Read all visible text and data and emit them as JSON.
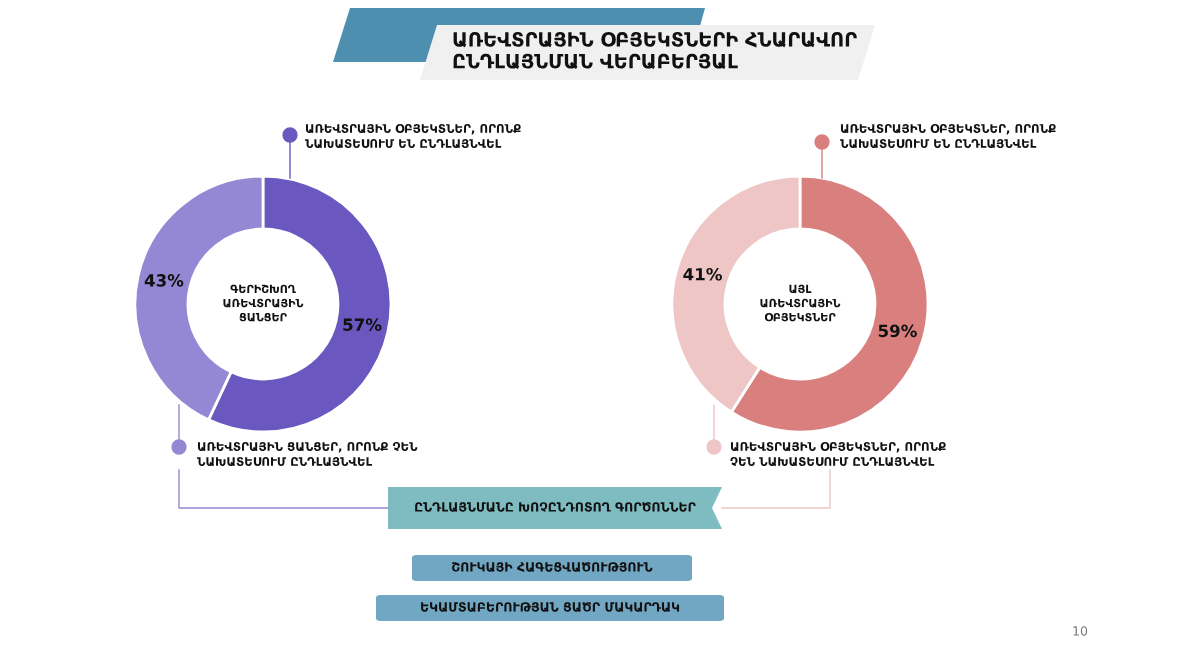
{
  "chart_data": [
    {
      "type": "donut",
      "title": "ԱՌԵՎՏՐԱՅԻՆ ՕԲՅԵԿՏՆԵՐԻ ՀՆԱՐԱՎՈՐ\nԸՆԴԼԱՅՆՄԱՆ ՎԵՐԱԲԵՐՅԱԼ",
      "categories": [
        "ԱՌԵՎՏՐԱՅԻՆ ՕԲՅԵԿՏՆԵՐ, ՈՐՈՆՔ\nՆԱԽԱՏԵՍՈՒՄ ԵՆ ԸՆԴԼԱՅՆՎԵԼ",
        "ԱՌԵՎՏՐԱՅԻՆ ՑԱՆՑԵՐ, ՈՐՈՆՔ ՉԵՆ\nՆԱԽԱՏԵՍՈՒՄ ԸՆԴԼԱՅՆՎԵԼ"
      ],
      "legend": "right",
      "values": [
        57,
        43
      ],
      "colors": [
        "#6a58c0",
        "#9488d4"
      ],
      "value_labels": [
        "57%",
        "43%"
      ],
      "annotations": [
        "ԳԵՐԻՇԽՈՂ\nԱՌԵՎՏՐԱՅԻՆ\nՑԱՆՑԵՐ",
        "ԸՆԴԼԱՅՆՄԱՆԸ ԽՈՉԸՆԴՈՏՈՂ ԳՈՐԾՈՆՆԵՐ",
        "ՇՈՒԿԱՅԻ ՀԱԳԵՑՎԱԾՈՒԹՅՈՒՆ",
        "ԵԿԱՄՏԱԲԵՐՈՒԹՅԱՆ ՑԱԾՐ ՄԱԿԱՐԴԱԿ"
      ]
    },
    {
      "type": "donut",
      "categories": [
        "ԱՌԵՎՏՐԱՅԻՆ ՕԲՅԵԿՏՆԵՐ, ՈՐՈՆՔ\nՆԱԽԱՏԵՍՈՒՄ ԵՆ ԸՆԴԼԱՅՆՎԵԼ",
        "ԱՌԵՎՏՐԱՅԻՆ ՕԲՅԵԿՏՆԵՐ, ՈՐՈՆՔ\nՉԵՆ ՆԱԽԱՏԵՍՈՒՄ ԸՆԴԼԱՅՆՎԵԼ"
      ],
      "legend": "right",
      "values": [
        59,
        41
      ],
      "colors": [
        "#d9807e",
        "#eec6c6"
      ],
      "value_labels": [
        "59%",
        "41%"
      ],
      "annotations": [
        "ԱՅԼ\nԱՌԵՎՏՐԱՅԻՆ\nՕԲՅԵԿՏՆԵՐ",
        "10"
      ]
    }
  ]
}
